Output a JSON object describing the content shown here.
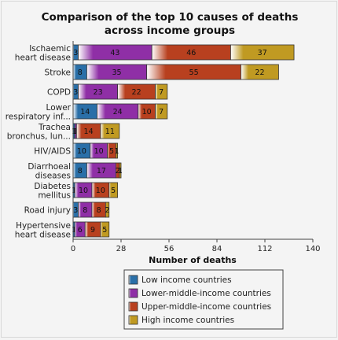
{
  "chart_data": {
    "type": "bar",
    "orientation": "horizontal",
    "stacked": true,
    "title": "Comparison of the top 10 causes of deaths across income groups",
    "title_lines": [
      "Comparison of the top 10 causes of deaths",
      "across income groups"
    ],
    "xlabel": "Number of deaths",
    "ylabel": "",
    "xlim": [
      0,
      140
    ],
    "xticks": [
      0,
      28,
      56,
      84,
      112,
      140
    ],
    "grid": false,
    "legend_position": "bottom",
    "category_labels": [
      [
        "Ischaemic",
        "heart disease"
      ],
      [
        "Stroke"
      ],
      [
        "COPD"
      ],
      [
        "Lower",
        "respiratory inf..."
      ],
      [
        "Trachea",
        "bronchus, lun..."
      ],
      [
        "HIV/AIDS"
      ],
      [
        "Diarrhoeal",
        "diseases"
      ],
      [
        "Diabetes",
        "mellitus"
      ],
      [
        "Road injury"
      ],
      [
        "Hypertensive",
        "heart disease"
      ]
    ],
    "series": [
      {
        "name": "Low income countries",
        "color": "#2a6fa8",
        "values": [
          3,
          8,
          3,
          14,
          1,
          10,
          8,
          1,
          3,
          1
        ]
      },
      {
        "name": "Lower-middle-income countries",
        "color": "#8f2fa6",
        "values": [
          43,
          35,
          23,
          24,
          1,
          10,
          17,
          10,
          8,
          6
        ]
      },
      {
        "name": "Upper-middle-income countries",
        "color": "#b8401f",
        "values": [
          46,
          55,
          22,
          10,
          14,
          5,
          2,
          10,
          8,
          9
        ]
      },
      {
        "name": "High income countries",
        "color": "#c09a22",
        "values": [
          37,
          22,
          7,
          7,
          11,
          1,
          1,
          5,
          2,
          5
        ]
      }
    ]
  }
}
